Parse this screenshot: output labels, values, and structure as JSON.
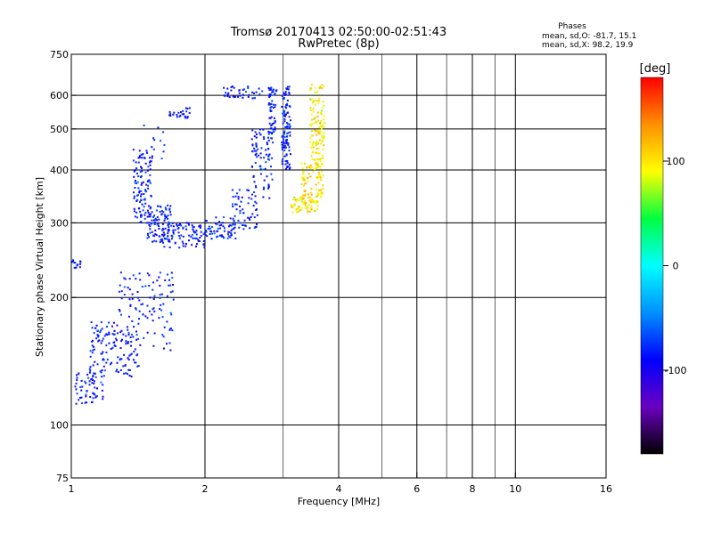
{
  "chart_data": {
    "type": "scatter",
    "title": "Tromsø 20170413 02:50:00-02:51:43",
    "subtitle": "RwPretec (8p)",
    "xlabel": "Frequency [MHz]",
    "ylabel": "Stationary phase Virtual Height [km]",
    "x_scale": "log",
    "y_scale": "log",
    "xlim": [
      1,
      16
    ],
    "ylim": [
      75,
      750
    ],
    "x_ticks": [
      "1",
      "2",
      "4",
      "6",
      "8",
      "10",
      "16"
    ],
    "y_ticks": [
      "75",
      "100",
      "200",
      "300",
      "400",
      "500",
      "600",
      "750"
    ],
    "x_gridlines": [
      2,
      4,
      6,
      8,
      10
    ],
    "y_gridlines": [
      100,
      200,
      300,
      400,
      500,
      600
    ],
    "x_minor_gridlines": [
      3,
      5,
      7,
      9
    ],
    "grid": true,
    "stats": {
      "heading": "Phases",
      "line1": "mean, sd,O: -81.7, 15.1",
      "line2": "mean, sd,X:  98.2, 19.9"
    },
    "colorbar": {
      "label": "[deg]",
      "range": [
        -180,
        180
      ],
      "ticks": [
        "100",
        "0",
        "-100"
      ],
      "tick_values": [
        100,
        0,
        -100
      ],
      "colors": [
        "#000000",
        "#6a00c0",
        "#0000ff",
        "#0090ff",
        "#00ffff",
        "#00ff40",
        "#ffff00",
        "#ff9000",
        "#ff0000"
      ]
    },
    "o_trace": {
      "mean_phase": -81.7,
      "clusters": [
        {
          "xmin": 1.0,
          "xmax": 1.05,
          "ymin": 235,
          "ymax": 245,
          "n": 14
        },
        {
          "xmin": 1.02,
          "xmax": 1.18,
          "ymin": 112,
          "ymax": 135,
          "n": 60
        },
        {
          "xmin": 1.1,
          "xmax": 1.42,
          "ymin": 130,
          "ymax": 175,
          "n": 130
        },
        {
          "xmin": 1.28,
          "xmax": 1.7,
          "ymin": 150,
          "ymax": 230,
          "n": 110
        },
        {
          "xmin": 1.38,
          "xmax": 1.52,
          "ymin": 300,
          "ymax": 450,
          "n": 110
        },
        {
          "xmin": 1.48,
          "xmax": 1.68,
          "ymin": 270,
          "ymax": 330,
          "n": 90
        },
        {
          "xmin": 1.6,
          "xmax": 2.0,
          "ymin": 262,
          "ymax": 300,
          "n": 90
        },
        {
          "xmin": 2.0,
          "xmax": 2.35,
          "ymin": 275,
          "ymax": 310,
          "n": 60
        },
        {
          "xmin": 2.3,
          "xmax": 2.65,
          "ymin": 290,
          "ymax": 360,
          "n": 60
        },
        {
          "xmin": 2.55,
          "xmax": 2.85,
          "ymin": 340,
          "ymax": 500,
          "n": 80
        },
        {
          "xmin": 2.78,
          "xmax": 2.9,
          "ymin": 480,
          "ymax": 630,
          "n": 60
        },
        {
          "xmin": 2.98,
          "xmax": 3.12,
          "ymin": 400,
          "ymax": 630,
          "n": 110
        },
        {
          "xmin": 1.65,
          "xmax": 1.85,
          "ymin": 530,
          "ymax": 560,
          "n": 24
        },
        {
          "xmin": 2.2,
          "xmax": 2.7,
          "ymin": 590,
          "ymax": 630,
          "n": 40
        },
        {
          "xmin": 1.45,
          "xmax": 1.65,
          "ymin": 420,
          "ymax": 520,
          "n": 14
        }
      ]
    },
    "x_trace": {
      "mean_phase": 98.2,
      "clusters": [
        {
          "xmin": 3.12,
          "xmax": 3.6,
          "ymin": 318,
          "ymax": 345,
          "n": 70
        },
        {
          "xmin": 3.3,
          "xmax": 3.7,
          "ymin": 345,
          "ymax": 420,
          "n": 90
        },
        {
          "xmin": 3.45,
          "xmax": 3.72,
          "ymin": 420,
          "ymax": 640,
          "n": 120
        }
      ]
    }
  }
}
